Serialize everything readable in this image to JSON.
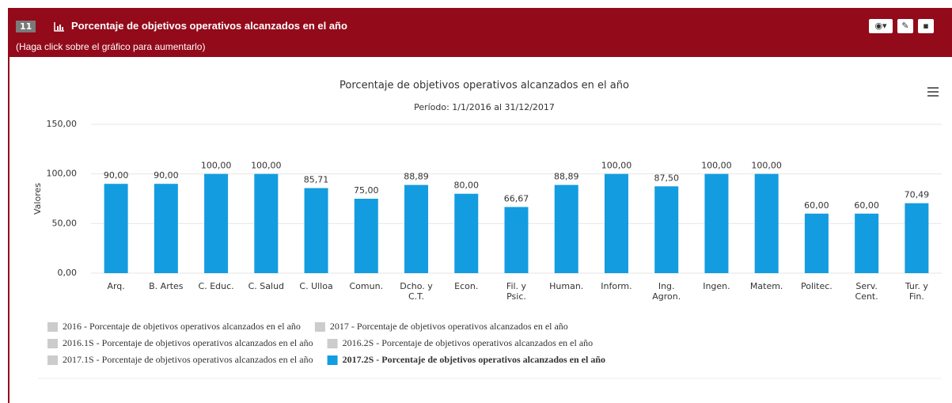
{
  "header": {
    "badge": "11",
    "title": "Porcentaje de objetivos operativos alcanzados en el año",
    "subtitle": "(Haga click sobre el gráfico para aumentarlo)"
  },
  "chart_data": {
    "type": "bar",
    "title": "Porcentaje de objetivos operativos alcanzados en el año",
    "subtitle": "Período: 1/1/2016 al 31/12/2017",
    "y_label": "Valores",
    "categories": [
      "Arq.",
      "B. Artes",
      "C. Educ.",
      "C. Salud",
      "C. Ulloa",
      "Comun.",
      "Dcho. y\nC.T.",
      "Econ.",
      "Fil. y\nPsic.",
      "Human.",
      "Inform.",
      "Ing.\nAgron.",
      "Ingen.",
      "Matem.",
      "Politec.",
      "Serv.\nCent.",
      "Tur. y\nFin."
    ],
    "series": [
      {
        "name": "2016 - Porcentaje de objetivos operativos alcanzados en el año",
        "color": "#cccccc",
        "visible": false
      },
      {
        "name": "2017 - Porcentaje de objetivos operativos alcanzados en el año",
        "color": "#cccccc",
        "visible": false
      },
      {
        "name": "2016.1S - Porcentaje de objetivos operativos alcanzados en el año",
        "color": "#cccccc",
        "visible": false
      },
      {
        "name": "2016.2S - Porcentaje de objetivos operativos alcanzados en el año",
        "color": "#cccccc",
        "visible": false
      },
      {
        "name": "2017.1S - Porcentaje de objetivos operativos alcanzados en el año",
        "color": "#cccccc",
        "visible": false
      },
      {
        "name": "2017.2S - Porcentaje de objetivos operativos alcanzados en el año",
        "color": "#149ce0",
        "visible": true,
        "values": [
          90,
          90,
          100,
          100,
          85.71,
          75,
          88.89,
          80,
          66.67,
          88.89,
          100,
          87.5,
          100,
          100,
          60,
          60,
          70.49
        ],
        "value_labels": [
          "90,00",
          "90,00",
          "100,00",
          "100,00",
          "85,71",
          "75,00",
          "88,89",
          "80,00",
          "66,67",
          "88,89",
          "100,00",
          "87,50",
          "100,00",
          "100,00",
          "60,00",
          "60,00",
          "70,49"
        ]
      }
    ],
    "ylim": [
      0,
      150
    ],
    "yticks": [
      {
        "value": 0,
        "label": "0,00"
      },
      {
        "value": 50,
        "label": "50,00"
      },
      {
        "value": 100,
        "label": "100,00"
      },
      {
        "value": 150,
        "label": "150,00"
      }
    ],
    "grid": true
  }
}
